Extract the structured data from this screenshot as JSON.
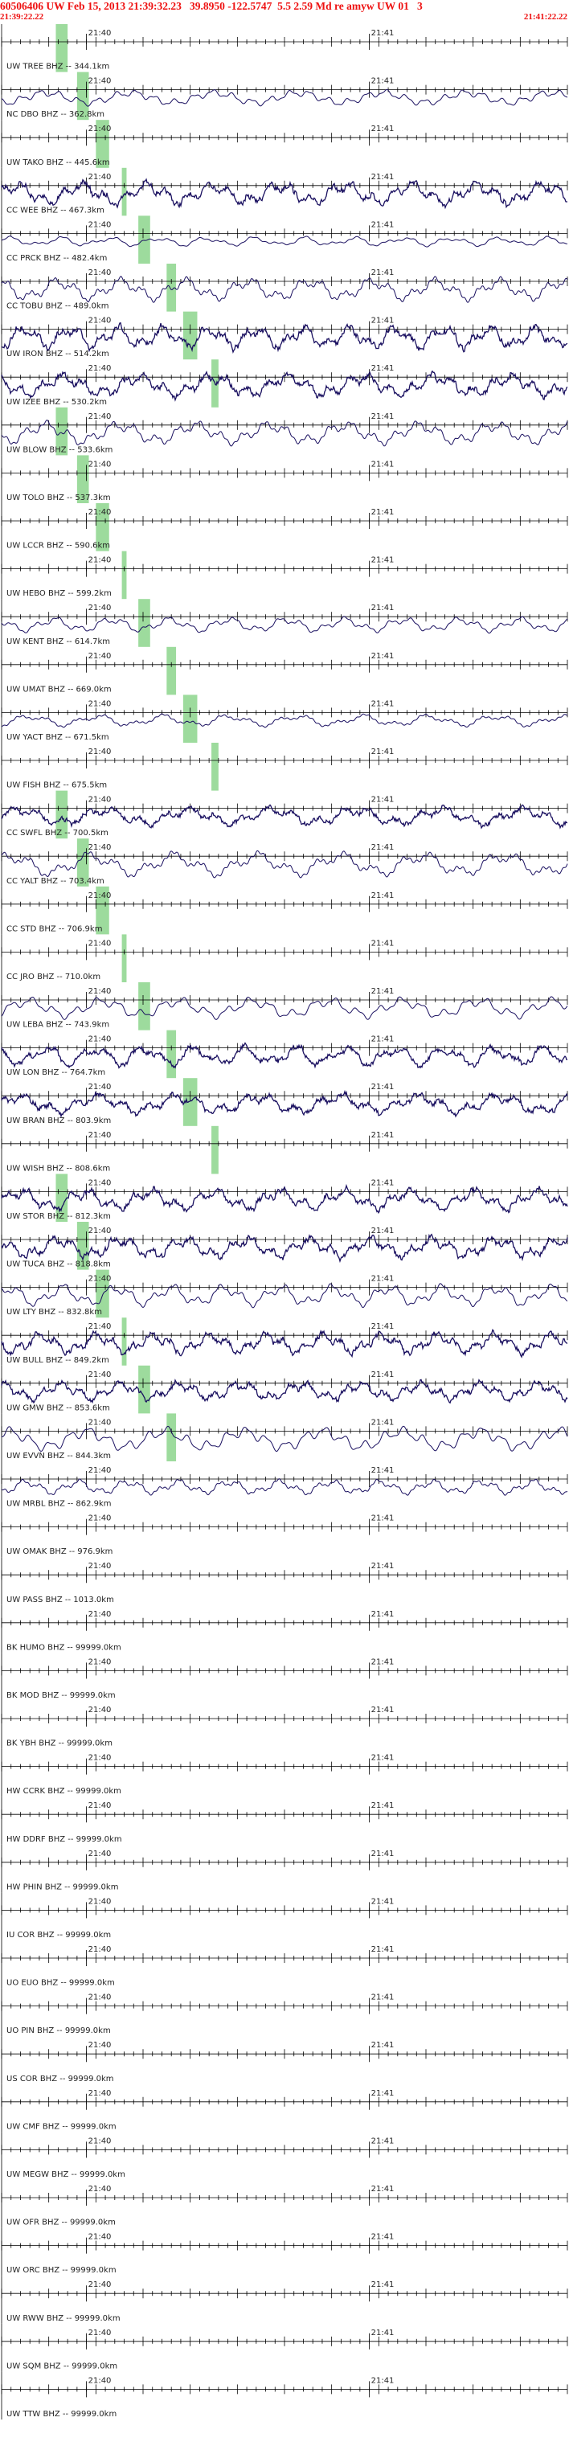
{
  "header": {
    "title": "60506406 UW Feb 15, 2013 21:39:32.23   39.8950 -122.5747  5.5 2.59 Md re amyw UW 01   3",
    "start_time": "21:39:22.22",
    "end_time": "21:41:22.22"
  },
  "colors": {
    "header": "#ee1111",
    "trace": "#1a1060",
    "pick": "#9ddb9d",
    "axis": "#000000"
  },
  "chart_data": {
    "type": "line",
    "x_range_seconds": [
      0,
      120
    ],
    "minute_labels": [
      {
        "t": 18,
        "label": "21:40"
      },
      {
        "t": 78,
        "label": "21:41"
      }
    ],
    "picks_seconds": [
      [
        11.5,
        14
      ],
      [
        16,
        18.5
      ],
      [
        20,
        22.8
      ],
      [
        25.5,
        26.5
      ],
      [
        29,
        31.5
      ],
      [
        35,
        37
      ],
      [
        38.5,
        41.5
      ],
      [
        44.5,
        46
      ]
    ],
    "stations": [
      {
        "label": "UW TREE BHZ -- 344.1km",
        "amp": 0
      },
      {
        "label": "NC DBO BHZ -- 362.8km",
        "amp": 0.55
      },
      {
        "label": "UW TAKO BHZ -- 445.6km",
        "amp": 0
      },
      {
        "label": "CC WEE BHZ -- 467.3km",
        "amp": 0.85
      },
      {
        "label": "CC PRCK BHZ -- 482.4km",
        "amp": 0.35
      },
      {
        "label": "CC TOBU BHZ -- 489.0km",
        "amp": 0.85
      },
      {
        "label": "UW IRON BHZ -- 514.2km",
        "amp": 0.85
      },
      {
        "label": "UW IZEE BHZ -- 530.2km",
        "amp": 0.85
      },
      {
        "label": "UW BLOW BHZ -- 533.6km",
        "amp": 0.85
      },
      {
        "label": "UW TOLO BHZ -- 537.3km",
        "amp": 0
      },
      {
        "label": "UW LCCR BHZ -- 590.6km",
        "amp": 0
      },
      {
        "label": "UW HEBO BHZ -- 599.2km",
        "amp": 0
      },
      {
        "label": "UW KENT BHZ -- 614.7km",
        "amp": 0.55
      },
      {
        "label": "UW UMAT BHZ -- 669.0km",
        "amp": 0
      },
      {
        "label": "UW YACT BHZ -- 671.5km",
        "amp": 0.45
      },
      {
        "label": "UW FISH BHZ -- 675.5km",
        "amp": 0
      },
      {
        "label": "CC SWFL BHZ -- 700.5km",
        "amp": 0.7
      },
      {
        "label": "CC YALT BHZ -- 703.4km",
        "amp": 0.9
      },
      {
        "label": "CC STD BHZ -- 706.9km",
        "amp": 0
      },
      {
        "label": "CC JRO BHZ -- 710.0km",
        "amp": 0
      },
      {
        "label": "UW LEBA BHZ -- 743.9km",
        "amp": 0.75
      },
      {
        "label": "UW LON BHZ -- 764.7km",
        "amp": 0.75
      },
      {
        "label": "UW BRAN BHZ -- 803.9km",
        "amp": 0.75
      },
      {
        "label": "UW WISH BHZ -- 808.6km",
        "amp": 0
      },
      {
        "label": "UW STOR BHZ -- 812.3km",
        "amp": 0.8
      },
      {
        "label": "UW TUCA BHZ -- 818.8km",
        "amp": 0.8
      },
      {
        "label": "UW LTY BHZ -- 832.8km",
        "amp": 0.8
      },
      {
        "label": "UW BULL BHZ -- 849.2km",
        "amp": 0.8
      },
      {
        "label": "UW GMW BHZ -- 853.6km",
        "amp": 0.7
      },
      {
        "label": "UW EVVN BHZ -- 844.3km",
        "amp": 0.85
      },
      {
        "label": "UW MRBL BHZ -- 862.9km",
        "amp": 0.55
      },
      {
        "label": "UW OMAK BHZ -- 976.9km",
        "amp": 0
      },
      {
        "label": "UW PASS BHZ -- 1013.0km",
        "amp": 0
      },
      {
        "label": "BK HUMO BHZ -- 99999.0km",
        "amp": 0
      },
      {
        "label": "BK MOD BHZ -- 99999.0km",
        "amp": 0
      },
      {
        "label": "BK YBH BHZ -- 99999.0km",
        "amp": 0
      },
      {
        "label": "HW CCRK BHZ -- 99999.0km",
        "amp": 0
      },
      {
        "label": "HW DDRF BHZ -- 99999.0km",
        "amp": 0
      },
      {
        "label": "HW PHIN BHZ -- 99999.0km",
        "amp": 0
      },
      {
        "label": "IU COR BHZ -- 99999.0km",
        "amp": 0
      },
      {
        "label": "UO EUO BHZ -- 99999.0km",
        "amp": 0
      },
      {
        "label": "UO PIN BHZ -- 99999.0km",
        "amp": 0
      },
      {
        "label": "US COR BHZ -- 99999.0km",
        "amp": 0
      },
      {
        "label": "UW CMF BHZ -- 99999.0km",
        "amp": 0
      },
      {
        "label": "UW MEGW BHZ -- 99999.0km",
        "amp": 0
      },
      {
        "label": "UW OFR BHZ -- 99999.0km",
        "amp": 0
      },
      {
        "label": "UW ORC BHZ -- 99999.0km",
        "amp": 0
      },
      {
        "label": "UW RWW BHZ -- 99999.0km",
        "amp": 0
      },
      {
        "label": "UW SQM BHZ -- 99999.0km",
        "amp": 0
      },
      {
        "label": "UW TTW BHZ -- 99999.0km",
        "amp": 0
      }
    ]
  }
}
